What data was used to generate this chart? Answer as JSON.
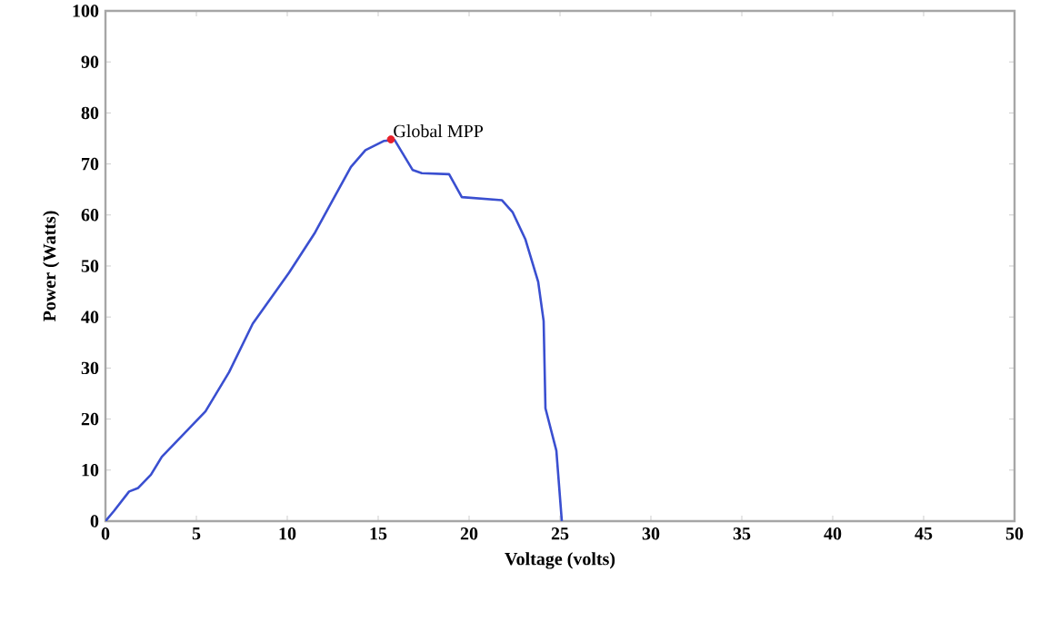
{
  "chart_data": {
    "type": "line",
    "xlabel": "Voltage (volts)",
    "ylabel": "Power (Watts)",
    "xlim": [
      0,
      50
    ],
    "ylim": [
      0,
      100
    ],
    "xticks": [
      0,
      5,
      10,
      15,
      20,
      25,
      30,
      35,
      40,
      45,
      50
    ],
    "yticks": [
      0,
      10,
      20,
      30,
      40,
      50,
      60,
      70,
      80,
      90,
      100
    ],
    "series": [
      {
        "color": "#3a4fd0",
        "x": [
          0,
          0.47,
          1.3,
          1.8,
          2.5,
          3.1,
          5.5,
          6.8,
          8.1,
          10.1,
          11.5,
          12.5,
          13.5,
          14.3,
          15.3,
          15.9,
          16.9,
          17.4,
          18.9,
          19.6,
          21.8,
          22.4,
          23.1,
          23.8,
          24.1,
          24.2,
          24.8,
          25.1
        ],
        "values": [
          0,
          2,
          5.8,
          6.5,
          9.1,
          12.6,
          21.5,
          29.2,
          38.7,
          48.7,
          56.4,
          62.9,
          69.4,
          72.7,
          74.5,
          74.7,
          68.8,
          68.2,
          68,
          63.5,
          62.9,
          60.5,
          55.2,
          46.9,
          39.2,
          22.1,
          13.8,
          0
        ]
      },
      {
        "type": "scatter",
        "color": "#e8202a",
        "x": [
          15.7
        ],
        "values": [
          74.8
        ]
      }
    ],
    "annotations": [
      {
        "text": "Global MPP",
        "x": 15.7,
        "y": 74.8
      }
    ],
    "grid": false
  }
}
